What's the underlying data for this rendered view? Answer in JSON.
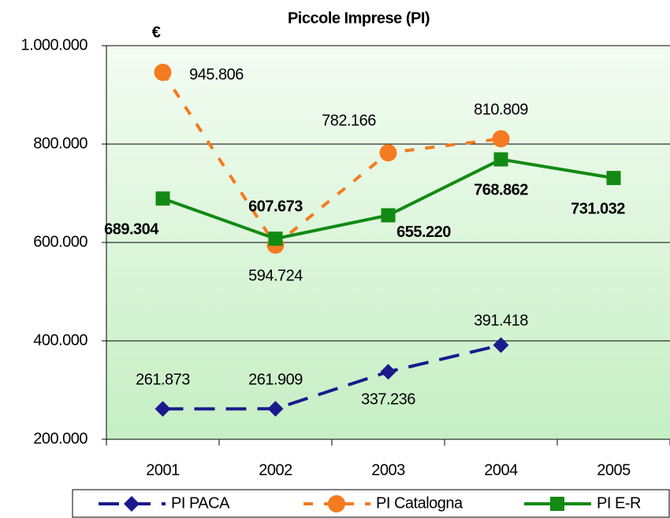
{
  "chart_data": {
    "type": "line",
    "title": "Piccole Imprese (PI)",
    "y_label": "€",
    "categories": [
      "2001",
      "2002",
      "2003",
      "2004",
      "2005"
    ],
    "series": [
      {
        "name": "PI PACA",
        "color": "#1a1a8c",
        "values": [
          261873,
          261909,
          337236,
          391418,
          null
        ],
        "value_labels": [
          "261.873",
          "261.909",
          "337.236",
          "391.418",
          null
        ]
      },
      {
        "name": "PI Catalogna",
        "color": "#f47b20",
        "values": [
          945806,
          594724,
          782166,
          810809,
          null
        ],
        "value_labels": [
          "945.806",
          "594.724",
          "782.166",
          "810.809",
          null
        ]
      },
      {
        "name": "PI E-R",
        "color": "#138a13",
        "values": [
          689304,
          607673,
          655220,
          768862,
          731032
        ],
        "value_labels": [
          "689.304",
          "607.673",
          "655.220",
          "768.862",
          "731.032"
        ]
      }
    ],
    "ylim": [
      200000,
      1000000
    ],
    "yticks": [
      {
        "value": 200000,
        "label": "200.000"
      },
      {
        "value": 400000,
        "label": "400.000"
      },
      {
        "value": 600000,
        "label": "600.000"
      },
      {
        "value": 800000,
        "label": "800.000"
      },
      {
        "value": 1000000,
        "label": "1.000.000"
      }
    ],
    "grid": true
  }
}
